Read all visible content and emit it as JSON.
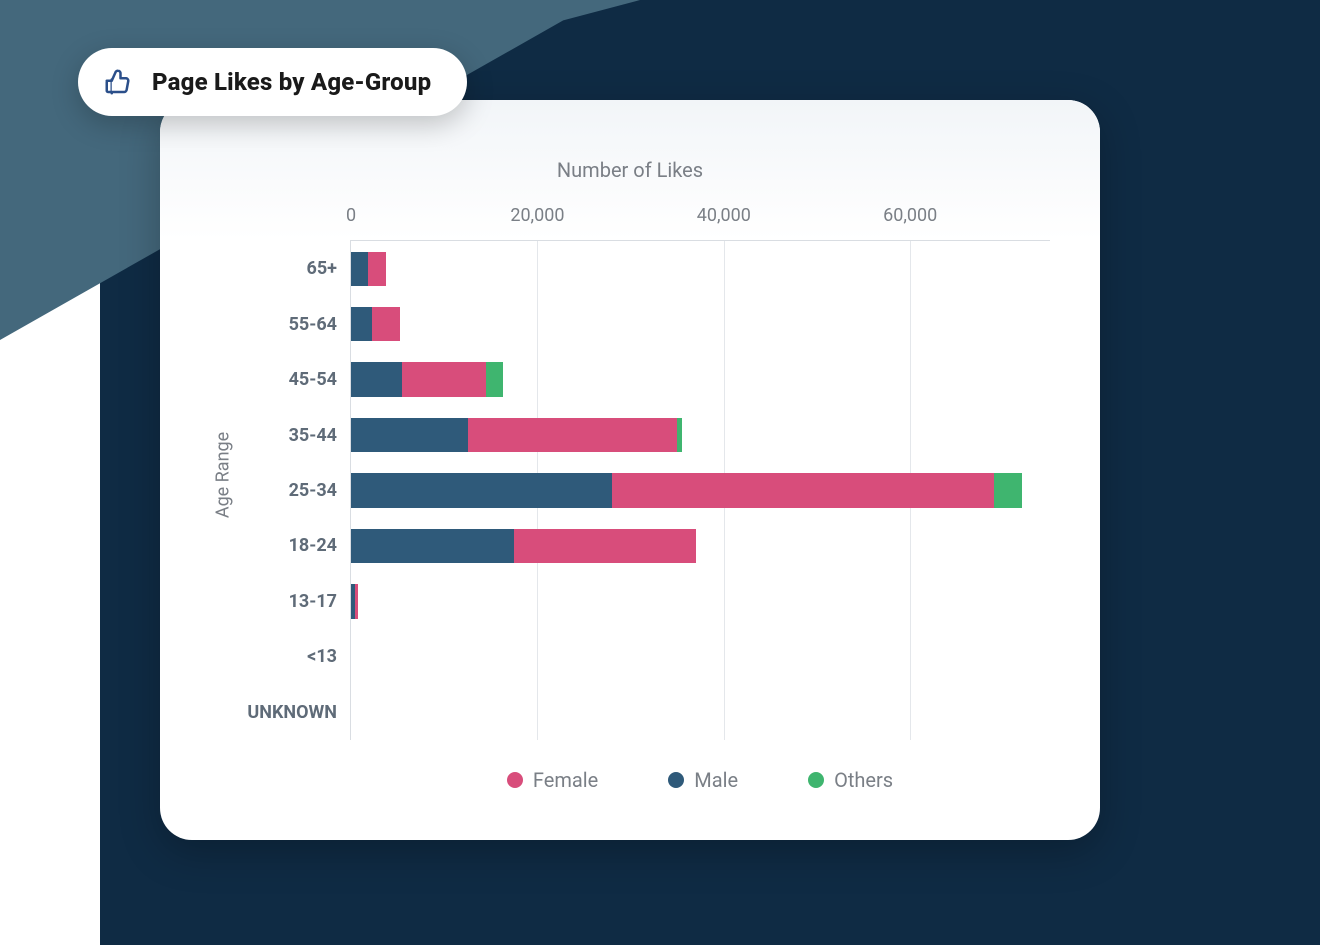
{
  "background": {
    "navy_color": "#0f2b44",
    "teal_color": "#44687c",
    "page_color": "#ffffff"
  },
  "title_pill": {
    "text": "Page Likes by Age-Group",
    "text_color": "#1a1a1a",
    "text_fontsize": 24,
    "text_fontweight": 800,
    "pill_bg": "#ffffff",
    "icon_name": "thumb-up-icon",
    "icon_stroke": "#2b4f8a",
    "icon_fill": "#ffffff"
  },
  "card": {
    "bg": "#ffffff",
    "border_radius": 32
  },
  "chart": {
    "type": "bar-stacked-horizontal",
    "x_axis_title": "Number of Likes",
    "y_axis_title": "Age Range",
    "axis_label_color": "#7a7f86",
    "category_label_color": "#5f6b78",
    "category_label_fontsize": 18,
    "category_label_fontweight": 700,
    "grid_color": "#e4e7eb",
    "axis_line_color": "#d9dde2",
    "xmin": 0,
    "xmax": 75000,
    "xticks": [
      0,
      20000,
      40000,
      60000
    ],
    "xtick_labels": [
      "0",
      "20,000",
      "40,000",
      "60,000"
    ],
    "bar_height_ratio": 0.62,
    "series": [
      {
        "key": "male",
        "label": "Male",
        "color": "#2f5a7a"
      },
      {
        "key": "female",
        "label": "Female",
        "color": "#d84d7b"
      },
      {
        "key": "others",
        "label": "Others",
        "color": "#3fb56f"
      }
    ],
    "legend_order": [
      "female",
      "male",
      "others"
    ],
    "categories": [
      {
        "label": "65+",
        "male": 1800,
        "female": 2000,
        "others": 0
      },
      {
        "label": "55-64",
        "male": 2200,
        "female": 3100,
        "others": 0
      },
      {
        "label": "45-54",
        "male": 5500,
        "female": 9000,
        "others": 1800
      },
      {
        "label": "35-44",
        "male": 12500,
        "female": 22500,
        "others": 500
      },
      {
        "label": "25-34",
        "male": 28000,
        "female": 41000,
        "others": 3000
      },
      {
        "label": "18-24",
        "male": 17500,
        "female": 19500,
        "others": 0
      },
      {
        "label": "13-17",
        "male": 400,
        "female": 400,
        "others": 0
      },
      {
        "label": "<13",
        "male": 0,
        "female": 0,
        "others": 0
      },
      {
        "label": "UNKNOWN",
        "male": 0,
        "female": 0,
        "others": 0
      }
    ]
  }
}
